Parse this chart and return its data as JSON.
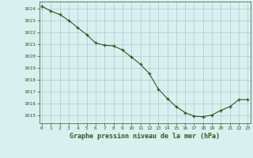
{
  "x": [
    0,
    1,
    2,
    3,
    4,
    5,
    6,
    7,
    8,
    9,
    10,
    11,
    12,
    13,
    14,
    15,
    16,
    17,
    18,
    19,
    20,
    21,
    22,
    23
  ],
  "y": [
    1024.2,
    1023.8,
    1023.5,
    1023.0,
    1022.4,
    1021.8,
    1021.1,
    1020.9,
    1020.85,
    1020.5,
    1019.9,
    1019.3,
    1018.5,
    1017.2,
    1016.4,
    1015.7,
    1015.2,
    1014.9,
    1014.85,
    1015.0,
    1015.4,
    1015.7,
    1016.3,
    1016.3
  ],
  "line_color": "#2d5a1b",
  "marker_color": "#2d5a1b",
  "bg_color": "#d9f0f0",
  "grid_color": "#b0c8c8",
  "title": "Graphe pression niveau de la mer (hPa)",
  "title_color": "#2d5a1b",
  "ylim_min": 1014.3,
  "ylim_max": 1024.6,
  "xlim_min": -0.3,
  "xlim_max": 23.3,
  "yticks": [
    1015,
    1016,
    1017,
    1018,
    1019,
    1020,
    1021,
    1022,
    1023,
    1024
  ],
  "xticks": [
    0,
    1,
    2,
    3,
    4,
    5,
    6,
    7,
    8,
    9,
    10,
    11,
    12,
    13,
    14,
    15,
    16,
    17,
    18,
    19,
    20,
    21,
    22,
    23
  ]
}
